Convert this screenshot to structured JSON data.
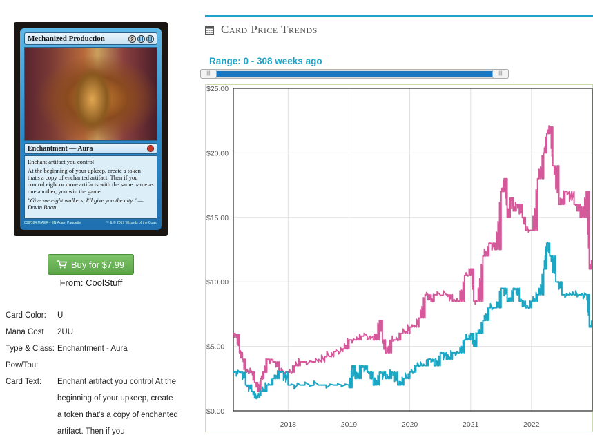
{
  "card": {
    "name": "Mechanized Production",
    "mana_symbols": [
      "2",
      "U",
      "U"
    ],
    "type_line": "Enchantment — Aura",
    "rules_lines": [
      "Enchant artifact you control",
      "At the beginning of your upkeep, create a token that's a copy of enchanted artifact. Then if you control eight or more artifacts with the same name as one another, you win the game."
    ],
    "flavor": "\"Give me eight walkers, I'll give you the city.\" —Dovin Baan",
    "collector_number": "038/184 M",
    "set_line": "AER • EN",
    "artist": "Adam Paquette",
    "copyright": "™ & © 2017 Wizards of the Coast"
  },
  "buy": {
    "label": "Buy for $7.99",
    "from": "From: CoolStuff",
    "icon": "cart-icon",
    "color": "#5ba447"
  },
  "details": [
    {
      "label": "Card Color:",
      "value": "U"
    },
    {
      "label": "Mana Cost",
      "value": "2UU"
    },
    {
      "label": "Type & Class:",
      "value": "Enchantment - Aura"
    },
    {
      "label": "Pow/Tou:",
      "value": ""
    },
    {
      "label": "Card Text:",
      "value": "Enchant artifact you control At the beginning of your upkeep, create a token that's a copy of enchanted artifact. Then if you"
    }
  ],
  "section": {
    "title": "Card Price Trends",
    "icon": "calendar-icon",
    "accent": "#1ea3c8"
  },
  "range": {
    "label": "Range: 0 - 308 weeks ago",
    "min_weeks": 0,
    "max_weeks": 308
  },
  "chart_data": {
    "type": "line",
    "title": "",
    "xlabel": "",
    "ylabel": "",
    "ylim": [
      0,
      25
    ],
    "xlim": [
      2017.1,
      2023.0
    ],
    "y_ticks": [
      "$0.00",
      "$5.00",
      "$10.00",
      "$15.00",
      "$20.00",
      "$25.00"
    ],
    "x_ticks": [
      "2018",
      "2019",
      "2020",
      "2021",
      "2022"
    ],
    "grid": true,
    "series": [
      {
        "color": "#d4589a",
        "x": [
          2017.1,
          2017.13,
          2017.2,
          2017.25,
          2017.3,
          2017.4,
          2017.45,
          2017.5,
          2017.55,
          2017.6,
          2017.65,
          2017.75,
          2017.85,
          2018.0,
          2018.1,
          2018.2,
          2018.4,
          2018.6,
          2018.75,
          2018.9,
          2019.0,
          2019.1,
          2019.2,
          2019.4,
          2019.5,
          2019.55,
          2019.6,
          2019.7,
          2019.75,
          2019.85,
          2020.0,
          2020.15,
          2020.25,
          2020.35,
          2020.4,
          2020.6,
          2020.7,
          2020.8,
          2020.9,
          2021.0,
          2021.05,
          2021.1,
          2021.2,
          2021.3,
          2021.4,
          2021.5,
          2021.55,
          2021.6,
          2021.65,
          2021.7,
          2021.75,
          2021.85,
          2021.9,
          2022.0,
          2022.1,
          2022.2,
          2022.25,
          2022.3,
          2022.35,
          2022.45,
          2022.55,
          2022.7,
          2022.8,
          2022.9,
          2022.95,
          2023.0
        ],
        "y": [
          6.0,
          5.9,
          4.5,
          4.0,
          3.0,
          3.0,
          2.2,
          1.5,
          2.5,
          3.0,
          4.0,
          3.8,
          3.0,
          3.0,
          3.5,
          3.8,
          3.8,
          4.2,
          4.6,
          4.8,
          5.5,
          5.5,
          5.8,
          5.5,
          7.0,
          5.5,
          4.5,
          5.5,
          5.5,
          6.0,
          6.5,
          7.2,
          9.0,
          8.5,
          9.0,
          9.0,
          8.5,
          8.5,
          10.5,
          11.0,
          8.5,
          8.5,
          12.0,
          13.0,
          12.5,
          17.0,
          18.0,
          15.0,
          16.5,
          15.5,
          16.0,
          15.0,
          14.0,
          14.0,
          18.0,
          20.0,
          21.5,
          22.0,
          19.0,
          16.0,
          17.0,
          16.0,
          15.0,
          17.0,
          11.0,
          11.5
        ]
      },
      {
        "color": "#1ba6c3",
        "x": [
          2017.1,
          2017.2,
          2017.3,
          2017.4,
          2017.45,
          2017.5,
          2017.55,
          2017.65,
          2017.75,
          2017.85,
          2018.0,
          2018.2,
          2018.5,
          2018.75,
          2019.0,
          2019.05,
          2019.1,
          2019.2,
          2019.3,
          2019.4,
          2019.5,
          2019.6,
          2019.7,
          2019.8,
          2019.9,
          2020.0,
          2020.1,
          2020.2,
          2020.3,
          2020.4,
          2020.5,
          2020.6,
          2020.7,
          2020.8,
          2020.9,
          2021.0,
          2021.05,
          2021.1,
          2021.2,
          2021.3,
          2021.4,
          2021.5,
          2021.6,
          2021.7,
          2021.8,
          2021.9,
          2022.0,
          2022.1,
          2022.2,
          2022.25,
          2022.3,
          2022.4,
          2022.5,
          2022.6,
          2022.7,
          2022.8,
          2022.9,
          2022.95,
          2023.0
        ],
        "y": [
          3.0,
          3.0,
          2.0,
          1.5,
          1.0,
          1.2,
          1.5,
          2.0,
          2.5,
          3.0,
          2.0,
          2.0,
          2.0,
          2.0,
          1.8,
          3.5,
          2.5,
          3.5,
          3.0,
          2.0,
          3.0,
          2.5,
          3.0,
          2.0,
          2.5,
          3.0,
          3.5,
          3.5,
          4.0,
          3.5,
          4.5,
          4.0,
          4.5,
          4.5,
          5.5,
          6.0,
          5.0,
          6.0,
          7.0,
          8.0,
          8.0,
          9.5,
          8.5,
          9.5,
          8.5,
          8.0,
          8.5,
          9.0,
          11.0,
          13.0,
          12.0,
          10.0,
          9.0,
          9.0,
          9.0,
          9.0,
          9.0,
          6.5,
          7.0
        ]
      }
    ]
  }
}
